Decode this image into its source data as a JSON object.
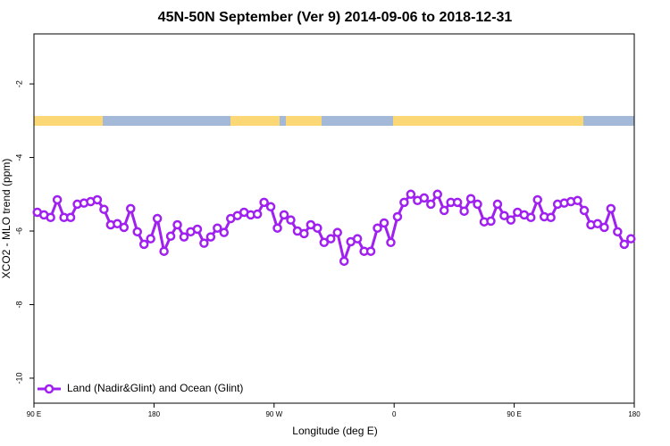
{
  "chart_data": {
    "type": "line",
    "title": "45N-50N September (Ver 9)   2014-09-06 to 2018-12-31",
    "x_label": "Longitude (deg E)",
    "y_label": "XCO2 - MLO trend (ppm)",
    "xlim": [
      90,
      540
    ],
    "xticks": [
      {
        "value": 90,
        "label": "90 E"
      },
      {
        "value": 180,
        "label": "180"
      },
      {
        "value": 270,
        "label": "90 W"
      },
      {
        "value": 360,
        "label": "0"
      },
      {
        "value": 450,
        "label": "90 E"
      },
      {
        "value": 540,
        "label": "180"
      }
    ],
    "ylim": [
      -10.68,
      -0.64
    ],
    "yticks": [
      -2,
      -4,
      -6,
      -8,
      -10
    ],
    "legend": "bottom-left",
    "x": [
      92.5,
      97.5,
      102.5,
      107.5,
      112.5,
      117.5,
      122.5,
      127.5,
      132.5,
      137.5,
      142.5,
      147.5,
      152.5,
      157.5,
      162.5,
      167.5,
      172.5,
      177.5,
      182.5,
      187.5,
      192.5,
      197.5,
      202.5,
      207.5,
      212.5,
      217.5,
      222.5,
      227.5,
      232.5,
      237.5,
      242.5,
      247.5,
      252.5,
      257.5,
      262.5,
      267.5,
      272.5,
      277.5,
      282.5,
      287.5,
      292.5,
      297.5,
      302.5,
      307.5,
      312.5,
      317.5,
      322.5,
      327.5,
      332.5,
      337.5,
      342.5,
      347.5,
      352.5,
      357.5,
      362.5,
      367.5,
      372.5,
      377.5,
      382.5,
      387.5,
      392.5,
      397.5,
      402.5,
      407.5,
      412.5,
      417.5,
      422.5,
      427.5,
      432.5,
      437.5,
      442.5,
      447.5,
      452.5,
      457.5,
      462.5,
      467.5,
      472.5,
      477.5,
      482.5,
      487.5,
      492.5,
      497.5,
      502.5,
      507.5,
      512.5,
      517.5,
      522.5,
      527.5,
      532.5,
      537.5
    ],
    "series": [
      {
        "name": "Land (Nadir&Glint) and Ocean (Glint)",
        "color": "#a020f0",
        "values": [
          -5.49,
          -5.56,
          -5.63,
          -5.15,
          -5.63,
          -5.63,
          -5.27,
          -5.24,
          -5.2,
          -5.15,
          -5.41,
          -5.83,
          -5.8,
          -5.9,
          -5.39,
          -6.02,
          -6.36,
          -6.21,
          -5.66,
          -6.55,
          -6.14,
          -5.83,
          -6.16,
          -6.02,
          -5.95,
          -6.33,
          -6.16,
          -5.92,
          -6.04,
          -5.66,
          -5.58,
          -5.49,
          -5.56,
          -5.54,
          -5.22,
          -5.34,
          -5.92,
          -5.56,
          -5.7,
          -6.0,
          -6.07,
          -5.83,
          -5.92,
          -6.31,
          -6.21,
          -6.04,
          -6.82,
          -6.29,
          -6.21,
          -6.55,
          -6.55,
          -5.92,
          -5.78,
          -6.31,
          -5.61,
          -5.22,
          -5.0,
          -5.17,
          -5.1,
          -5.27,
          -5.0,
          -5.44,
          -5.22,
          -5.22,
          -5.46,
          -5.12,
          -5.27,
          -5.75,
          -5.73,
          -5.27,
          -5.58,
          -5.7,
          -5.49,
          -5.56,
          -5.63,
          -5.15,
          -5.61,
          -5.63,
          -5.27,
          -5.24,
          -5.2,
          -5.17,
          -5.44,
          -5.83,
          -5.8,
          -5.9,
          -5.39,
          -6.02,
          -6.36,
          -6.21
        ]
      }
    ]
  }
}
